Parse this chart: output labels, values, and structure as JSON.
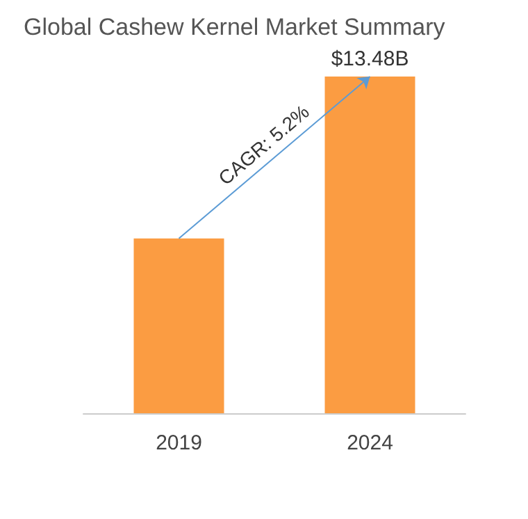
{
  "chart_data": {
    "type": "bar",
    "title": "Global Cashew Kernel Market Summary",
    "categories": [
      "2019",
      "2024"
    ],
    "values": [
      7.0,
      13.48
    ],
    "value_labels": [
      null,
      "$13.48B"
    ],
    "color": "#fb9c42",
    "annotations": [
      "CAGR: 5.2%"
    ]
  }
}
